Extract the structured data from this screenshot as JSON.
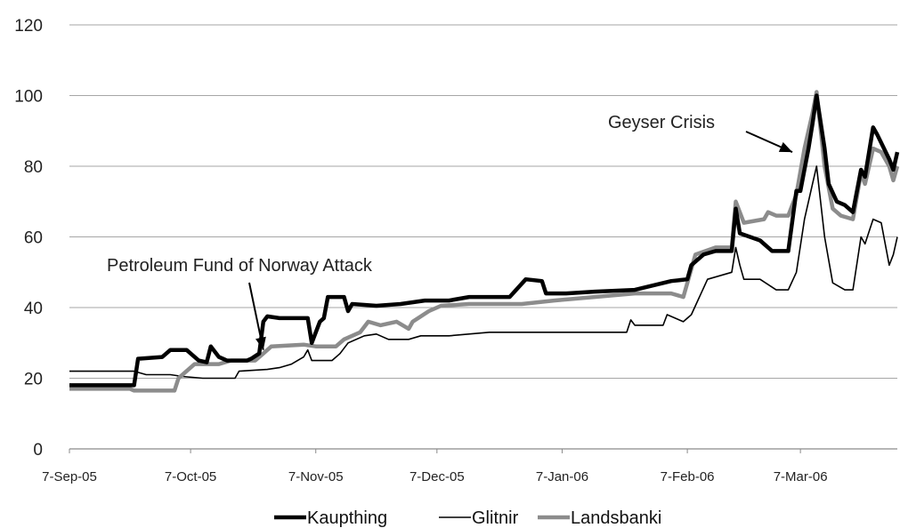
{
  "chart_data": {
    "type": "line",
    "title": "",
    "xlabel": "",
    "ylabel": "",
    "ylim": [
      0,
      120
    ],
    "yticks": [
      0,
      20,
      40,
      60,
      80,
      100,
      120
    ],
    "xlim": [
      "2005-09-07",
      "2006-03-31"
    ],
    "xticks": [
      {
        "date": "2005-09-07",
        "label": "7-Sep-05"
      },
      {
        "date": "2005-10-07",
        "label": "7-Oct-05"
      },
      {
        "date": "2005-11-07",
        "label": "7-Nov-05"
      },
      {
        "date": "2005-12-07",
        "label": "7-Dec-05"
      },
      {
        "date": "2006-01-07",
        "label": "7-Jan-06"
      },
      {
        "date": "2006-02-07",
        "label": "7-Feb-06"
      },
      {
        "date": "2006-03-07",
        "label": "7-Mar-06"
      }
    ],
    "grid": true,
    "legend_position": "bottom",
    "series": [
      {
        "name": "Kaupthing",
        "color": "#000000",
        "points": [
          [
            "2005-09-07",
            18
          ],
          [
            "2005-09-20",
            18
          ],
          [
            "2005-09-23",
            18
          ],
          [
            "2005-09-24",
            25.5
          ],
          [
            "2005-09-30",
            26
          ],
          [
            "2005-10-02",
            28
          ],
          [
            "2005-10-06",
            28
          ],
          [
            "2005-10-09",
            25
          ],
          [
            "2005-10-11",
            24.5
          ],
          [
            "2005-10-12",
            29
          ],
          [
            "2005-10-14",
            26
          ],
          [
            "2005-10-16",
            25
          ],
          [
            "2005-10-21",
            25
          ],
          [
            "2005-10-22",
            25.5
          ],
          [
            "2005-10-24",
            27
          ],
          [
            "2005-10-25",
            36
          ],
          [
            "2005-10-26",
            37.5
          ],
          [
            "2005-10-29",
            37
          ],
          [
            "2005-11-03",
            37
          ],
          [
            "2005-11-05",
            37
          ],
          [
            "2005-11-06",
            30
          ],
          [
            "2005-11-08",
            36
          ],
          [
            "2005-11-09",
            37
          ],
          [
            "2005-11-10",
            43
          ],
          [
            "2005-11-14",
            43
          ],
          [
            "2005-11-15",
            39
          ],
          [
            "2005-11-16",
            41
          ],
          [
            "2005-11-22",
            40.5
          ],
          [
            "2005-11-28",
            41
          ],
          [
            "2005-12-04",
            42
          ],
          [
            "2005-12-10",
            42
          ],
          [
            "2005-12-15",
            43
          ],
          [
            "2005-12-25",
            43
          ],
          [
            "2005-12-29",
            48
          ],
          [
            "2006-01-02",
            47.5
          ],
          [
            "2006-01-03",
            44
          ],
          [
            "2006-01-08",
            44
          ],
          [
            "2006-01-15",
            44.5
          ],
          [
            "2006-01-25",
            45
          ],
          [
            "2006-02-03",
            47.5
          ],
          [
            "2006-02-07",
            48
          ],
          [
            "2006-02-08",
            52
          ],
          [
            "2006-02-11",
            55
          ],
          [
            "2006-02-14",
            56
          ],
          [
            "2006-02-18",
            56
          ],
          [
            "2006-02-19",
            68
          ],
          [
            "2006-02-20",
            61
          ],
          [
            "2006-02-25",
            59
          ],
          [
            "2006-02-27",
            57
          ],
          [
            "2006-02-28",
            56
          ],
          [
            "2006-03-04",
            56
          ],
          [
            "2006-03-06",
            73
          ],
          [
            "2006-03-07",
            73
          ],
          [
            "2006-03-09",
            85
          ],
          [
            "2006-03-10",
            92
          ],
          [
            "2006-03-11",
            100
          ],
          [
            "2006-03-13",
            85
          ],
          [
            "2006-03-14",
            75
          ],
          [
            "2006-03-16",
            70
          ],
          [
            "2006-03-18",
            69
          ],
          [
            "2006-03-20",
            67
          ],
          [
            "2006-03-22",
            79
          ],
          [
            "2006-03-23",
            77
          ],
          [
            "2006-03-25",
            91
          ],
          [
            "2006-03-26",
            89
          ],
          [
            "2006-03-29",
            82
          ],
          [
            "2006-03-30",
            79
          ],
          [
            "2006-03-31",
            84
          ]
        ]
      },
      {
        "name": "Glitnir",
        "color": "#000000",
        "points": [
          [
            "2005-09-07",
            22
          ],
          [
            "2005-09-23",
            22
          ],
          [
            "2005-09-26",
            21
          ],
          [
            "2005-10-02",
            21
          ],
          [
            "2005-10-05",
            20.5
          ],
          [
            "2005-10-10",
            20
          ],
          [
            "2005-10-18",
            20
          ],
          [
            "2005-10-19",
            22
          ],
          [
            "2005-10-26",
            22.5
          ],
          [
            "2005-10-29",
            23
          ],
          [
            "2005-11-01",
            24
          ],
          [
            "2005-11-04",
            26
          ],
          [
            "2005-11-05",
            28
          ],
          [
            "2005-11-06",
            25
          ],
          [
            "2005-11-11",
            25
          ],
          [
            "2005-11-13",
            27
          ],
          [
            "2005-11-15",
            30
          ],
          [
            "2005-11-19",
            32
          ],
          [
            "2005-11-22",
            32.5
          ],
          [
            "2005-11-25",
            31
          ],
          [
            "2005-11-30",
            31
          ],
          [
            "2005-12-03",
            32
          ],
          [
            "2005-12-10",
            32
          ],
          [
            "2005-12-20",
            33
          ],
          [
            "2006-01-10",
            33
          ],
          [
            "2006-01-20",
            33
          ],
          [
            "2006-01-23",
            33
          ],
          [
            "2006-01-24",
            36.5
          ],
          [
            "2006-01-25",
            35
          ],
          [
            "2006-02-01",
            35
          ],
          [
            "2006-02-02",
            38
          ],
          [
            "2006-02-06",
            36
          ],
          [
            "2006-02-08",
            38
          ],
          [
            "2006-02-12",
            48
          ],
          [
            "2006-02-18",
            50
          ],
          [
            "2006-02-19",
            57
          ],
          [
            "2006-02-20",
            52
          ],
          [
            "2006-02-21",
            48
          ],
          [
            "2006-02-25",
            48
          ],
          [
            "2006-03-01",
            45
          ],
          [
            "2006-03-04",
            45
          ],
          [
            "2006-03-06",
            50
          ],
          [
            "2006-03-08",
            65
          ],
          [
            "2006-03-10",
            75
          ],
          [
            "2006-03-11",
            80
          ],
          [
            "2006-03-13",
            60
          ],
          [
            "2006-03-15",
            47
          ],
          [
            "2006-03-18",
            45
          ],
          [
            "2006-03-20",
            45
          ],
          [
            "2006-03-22",
            60
          ],
          [
            "2006-03-23",
            58
          ],
          [
            "2006-03-25",
            65
          ],
          [
            "2006-03-27",
            64
          ],
          [
            "2006-03-29",
            52
          ],
          [
            "2006-03-30",
            55
          ],
          [
            "2006-03-31",
            60
          ]
        ]
      },
      {
        "name": "Landsbanki",
        "color": "#8c8c8c",
        "points": [
          [
            "2005-09-07",
            17
          ],
          [
            "2005-09-22",
            17
          ],
          [
            "2005-09-23",
            16.5
          ],
          [
            "2005-09-30",
            16.5
          ],
          [
            "2005-10-03",
            16.5
          ],
          [
            "2005-10-04",
            20
          ],
          [
            "2005-10-08",
            24
          ],
          [
            "2005-10-14",
            24
          ],
          [
            "2005-10-17",
            25
          ],
          [
            "2005-10-23",
            25
          ],
          [
            "2005-10-25",
            27
          ],
          [
            "2005-10-27",
            29
          ],
          [
            "2005-11-04",
            29.5
          ],
          [
            "2005-11-07",
            29
          ],
          [
            "2005-11-12",
            29
          ],
          [
            "2005-11-14",
            31
          ],
          [
            "2005-11-18",
            33
          ],
          [
            "2005-11-20",
            36
          ],
          [
            "2005-11-23",
            35
          ],
          [
            "2005-11-27",
            36
          ],
          [
            "2005-11-30",
            34
          ],
          [
            "2005-12-01",
            36
          ],
          [
            "2005-12-05",
            39
          ],
          [
            "2005-12-08",
            40.5
          ],
          [
            "2005-12-15",
            41
          ],
          [
            "2005-12-28",
            41
          ],
          [
            "2006-01-05",
            42
          ],
          [
            "2006-01-15",
            43
          ],
          [
            "2006-01-25",
            44
          ],
          [
            "2006-02-03",
            44
          ],
          [
            "2006-02-06",
            43
          ],
          [
            "2006-02-09",
            55
          ],
          [
            "2006-02-14",
            57
          ],
          [
            "2006-02-18",
            57
          ],
          [
            "2006-02-19",
            70
          ],
          [
            "2006-02-21",
            64
          ],
          [
            "2006-02-26",
            65
          ],
          [
            "2006-02-27",
            67
          ],
          [
            "2006-03-01",
            66
          ],
          [
            "2006-03-04",
            66
          ],
          [
            "2006-03-06",
            72
          ],
          [
            "2006-03-08",
            85
          ],
          [
            "2006-03-10",
            95
          ],
          [
            "2006-03-11",
            101
          ],
          [
            "2006-03-13",
            80
          ],
          [
            "2006-03-15",
            68
          ],
          [
            "2006-03-17",
            66
          ],
          [
            "2006-03-20",
            65
          ],
          [
            "2006-03-22",
            78
          ],
          [
            "2006-03-23",
            75
          ],
          [
            "2006-03-25",
            85
          ],
          [
            "2006-03-27",
            84
          ],
          [
            "2006-03-29",
            80
          ],
          [
            "2006-03-30",
            76
          ],
          [
            "2006-03-31",
            80
          ]
        ]
      }
    ],
    "annotations": [
      {
        "text": "Petroleum Fund of Norway Attack",
        "arrow_to": [
          "2005-10-25",
          28
        ]
      },
      {
        "text": "Geyser Crisis",
        "arrow_to": [
          "2006-03-05",
          84
        ]
      }
    ]
  }
}
